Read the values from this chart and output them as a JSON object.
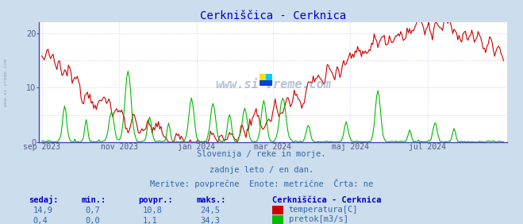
{
  "title": "Cerkniščica - Cerknica",
  "title_color": "#0000cc",
  "bg_color": "#ccdded",
  "plot_bg_color": "#ffffff",
  "grid_color_h": "#e8b8b8",
  "grid_color_v": "#c8c8e8",
  "y_min": 0,
  "y_max": 22,
  "yticks": [
    0,
    10,
    20
  ],
  "x_tick_labels": [
    "sep 2023",
    "nov 2023",
    "jan 2024",
    "mar 2024",
    "maj 2024",
    "jul 2024"
  ],
  "x_tick_positions": [
    0,
    61,
    122,
    182,
    243,
    304
  ],
  "temp_color": "#cc0000",
  "flow_color": "#00bb00",
  "subtitle_color": "#3366aa",
  "table_header_color": "#0000cc",
  "table_data_color": "#3366aa",
  "watermark": "www.si-vreme.com",
  "left_label": "www.si-vreme.com",
  "subtitle_lines": [
    "Slovenija / reke in morje.",
    "zadnje leto / en dan.",
    "Meritve: povprečne  Enote: metrične  Črta: ne"
  ],
  "stats_headers": [
    "sedaj:",
    "min.:",
    "povpr.:",
    "maks.:"
  ],
  "temp_stats": [
    "14,9",
    "0,7",
    "10,8",
    "24,5"
  ],
  "flow_stats": [
    "0,4",
    "0,0",
    "1,1",
    "34,3"
  ],
  "legend_title": "Cerkniščica - Cerknica",
  "legend_temp": "temperatura[C]",
  "legend_flow": "pretok[m3/s]",
  "spine_color": "#4444cc",
  "tick_color": "#555588"
}
